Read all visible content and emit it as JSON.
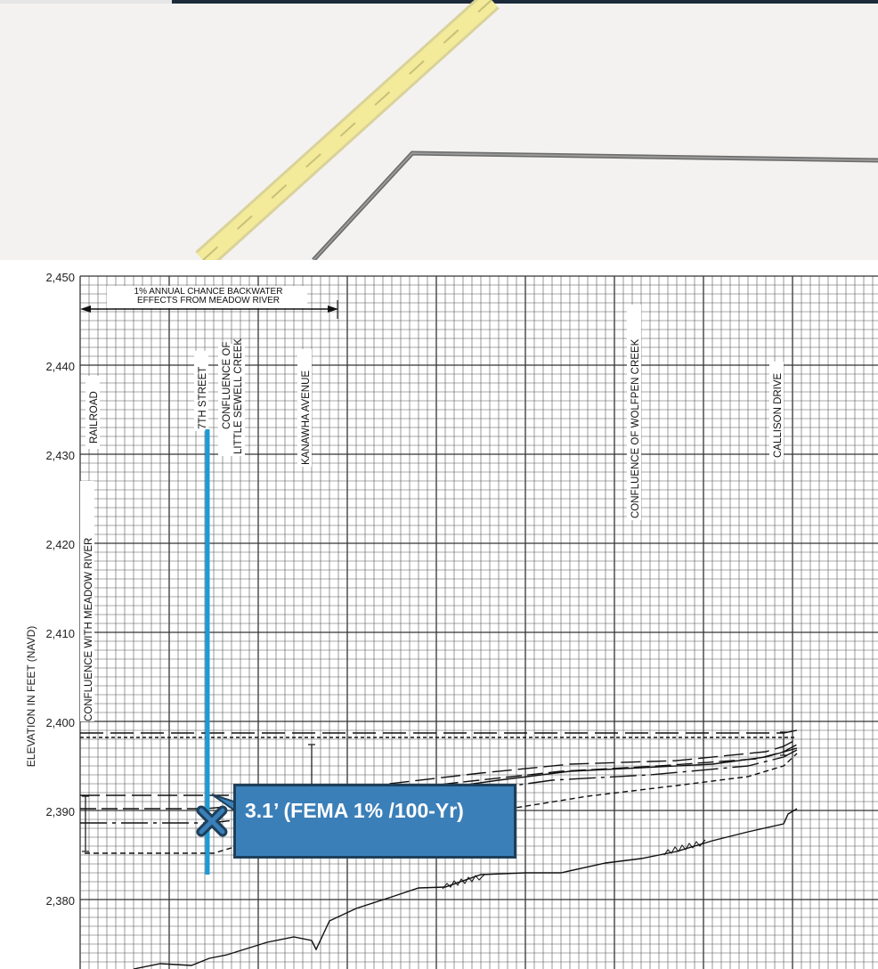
{
  "map": {
    "colors": {
      "background": "#f3f2f0",
      "road_major": "#f3ea9a",
      "road_casing": "#d9d29a",
      "road_minor": "#6a6a6a",
      "top_bar": "#1c2b3a"
    }
  },
  "profile": {
    "y_axis_title": "ELEVATION IN FEET (NAVD)",
    "y_ticks": [
      "2,450",
      "2,440",
      "2,430",
      "2,420",
      "2,410",
      "2,400",
      "2,390",
      "2,380"
    ],
    "backwater_label_line1": "1% ANNUAL CHANCE BACKWATER",
    "backwater_label_line2": "EFFECTS FROM MEADOW RIVER",
    "features": {
      "confluence_meadow": "CONFLUENCE WITH MEADOW RIVER",
      "railroad": "RAILROAD",
      "seventh_street": "7TH STREET",
      "confluence_little_sewell_1": "CONFLUENCE OF",
      "confluence_little_sewell_2": "LITTLE SEWELL CREEK",
      "kanawha": "KANAWHA AVENUE",
      "confluence_wolfpen": "CONFLUENCE OF WOLFPEN CREEK",
      "callison": "CALLISON DRIVE"
    },
    "marker": {
      "icon": "x-marker-icon",
      "color": "#1d3f5a",
      "line_color": "#1c9bd6"
    },
    "callout": {
      "text": "3.1’ (FEMA 1% /100-Yr)",
      "background": "#3b7fb8",
      "border": "#1d3f5a"
    }
  }
}
